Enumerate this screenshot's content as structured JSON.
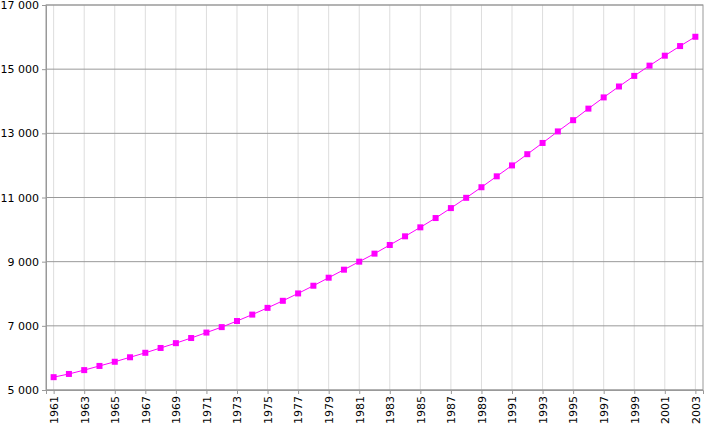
{
  "chart_data": {
    "type": "line",
    "x": [
      1961,
      1962,
      1963,
      1964,
      1965,
      1966,
      1967,
      1968,
      1969,
      1970,
      1971,
      1972,
      1973,
      1974,
      1975,
      1976,
      1977,
      1978,
      1979,
      1980,
      1981,
      1982,
      1983,
      1984,
      1985,
      1986,
      1987,
      1988,
      1989,
      1990,
      1991,
      1992,
      1993,
      1994,
      1995,
      1996,
      1997,
      1998,
      1999,
      2000,
      2001,
      2002,
      2003
    ],
    "values": [
      5400,
      5500,
      5620,
      5750,
      5880,
      6020,
      6160,
      6310,
      6460,
      6620,
      6790,
      6960,
      7150,
      7350,
      7560,
      7780,
      8010,
      8250,
      8500,
      8750,
      9000,
      9250,
      9520,
      9790,
      10070,
      10360,
      10670,
      10990,
      11320,
      11660,
      12000,
      12350,
      12700,
      13060,
      13410,
      13770,
      14120,
      14460,
      14790,
      15110,
      15420,
      15720,
      16010
    ],
    "color": "#ff00ff",
    "marker": "square",
    "grid": true,
    "xlim": [
      1960.5,
      2003.5
    ],
    "xticks": [
      1961,
      1963,
      1965,
      1967,
      1969,
      1971,
      1973,
      1975,
      1977,
      1979,
      1981,
      1983,
      1985,
      1987,
      1989,
      1991,
      1993,
      1995,
      1997,
      1999,
      2001,
      2003
    ],
    "ylim": [
      5000,
      17000
    ],
    "yticks": [
      {
        "value": 5000,
        "label": "5 000"
      },
      {
        "value": 7000,
        "label": "7 000"
      },
      {
        "value": 9000,
        "label": "9 000"
      },
      {
        "value": 11000,
        "label": "11 000"
      },
      {
        "value": 13000,
        "label": "13 000"
      },
      {
        "value": 15000,
        "label": "15 000"
      },
      {
        "value": 17000,
        "label": "17 000"
      }
    ]
  }
}
